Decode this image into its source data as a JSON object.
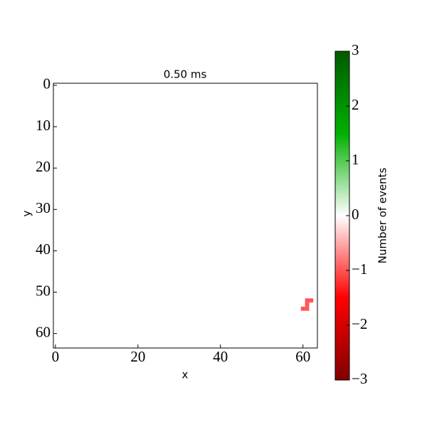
{
  "chart_data": {
    "type": "heatmap",
    "title": "0.50 ms",
    "x_label": "x",
    "y_label": "y",
    "x": [
      61,
      62,
      61,
      60,
      61
    ],
    "y": [
      52,
      52,
      53,
      54,
      54
    ],
    "values": [
      -1,
      -1,
      -1,
      -1,
      -1
    ],
    "xlim": [
      -0.5,
      63.5
    ],
    "ylim": [
      63.5,
      -0.5
    ],
    "xticks": [
      0,
      20,
      40,
      60
    ],
    "yticks": [
      0,
      10,
      20,
      30,
      40,
      50,
      60
    ],
    "colorbar_label": "Number of events",
    "zlim": [
      -3,
      3
    ],
    "zticks": [
      {
        "value": -3,
        "label": "−3"
      },
      {
        "value": -2,
        "label": "−2"
      },
      {
        "value": -1,
        "label": "−1"
      },
      0,
      1,
      2,
      3
    ],
    "colormap": [
      "#800000",
      "#ff0000",
      "#ffffff",
      "#00b000",
      "#005a00"
    ]
  }
}
